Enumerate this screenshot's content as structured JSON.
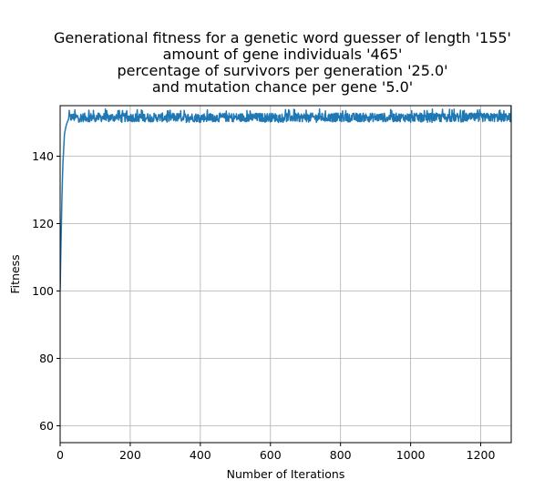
{
  "chart_data": {
    "type": "line",
    "title_lines": [
      "Generational fitness for a genetic word guesser of length '155'",
      "amount of gene individuals '465'",
      "percentage of survivors per generation '25.0'",
      "and mutation chance per gene '5.0'"
    ],
    "xlabel": "Number of Iterations",
    "ylabel": "Fitness",
    "xlim": [
      0,
      1287
    ],
    "ylim": [
      55,
      155
    ],
    "xticks": [
      0,
      200,
      400,
      600,
      800,
      1000,
      1200
    ],
    "yticks": [
      60,
      80,
      100,
      120,
      140
    ],
    "grid": true,
    "series": [
      {
        "color": "#1f77b4",
        "initial_points": [
          {
            "x": 0,
            "y": 100
          },
          {
            "x": 1,
            "y": 106
          },
          {
            "x": 2,
            "y": 112
          },
          {
            "x": 3,
            "y": 117
          },
          {
            "x": 4,
            "y": 122
          },
          {
            "x": 5,
            "y": 127
          },
          {
            "x": 6,
            "y": 131
          },
          {
            "x": 7,
            "y": 135
          },
          {
            "x": 8,
            "y": 138
          },
          {
            "x": 9,
            "y": 140
          },
          {
            "x": 10,
            "y": 142
          },
          {
            "x": 11,
            "y": 144
          },
          {
            "x": 12,
            "y": 146
          },
          {
            "x": 13,
            "y": 147
          },
          {
            "x": 15,
            "y": 148
          },
          {
            "x": 17,
            "y": 149
          },
          {
            "x": 20,
            "y": 150
          },
          {
            "x": 24,
            "y": 151
          }
        ],
        "plateau": {
          "from_x": 25,
          "to_x": 1287,
          "mean": 151.5,
          "low": 150,
          "high": 154
        },
        "final_point": {
          "x": 1287,
          "y": 155
        }
      }
    ]
  }
}
